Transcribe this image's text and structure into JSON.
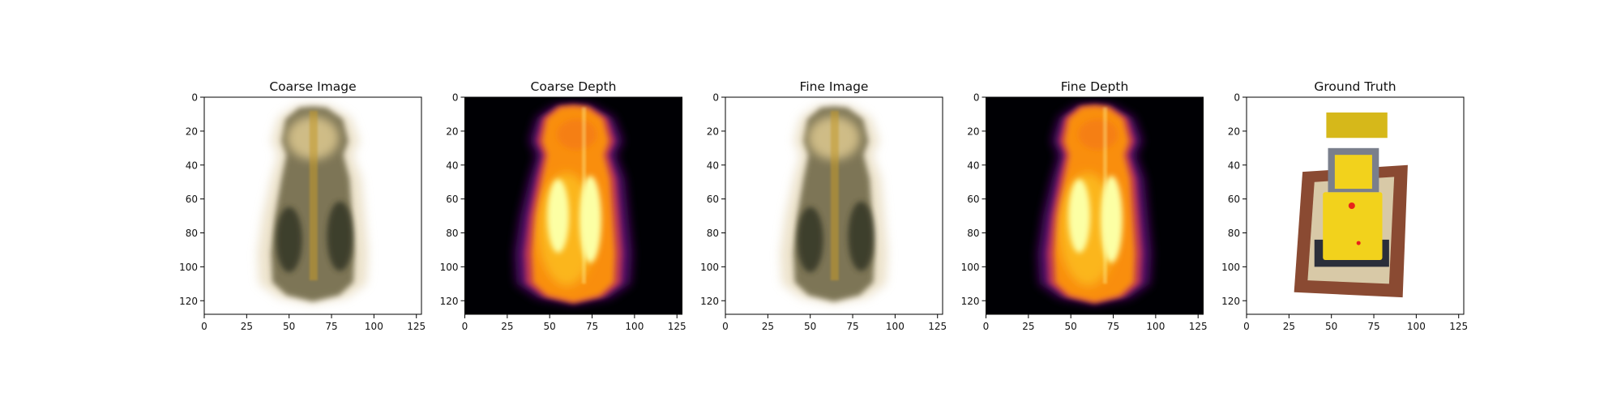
{
  "figure": {
    "panels": [
      {
        "title": "Coarse Image",
        "kind": "image-white",
        "spread": 1.0
      },
      {
        "title": "Coarse Depth",
        "kind": "depth",
        "spread": 1.0
      },
      {
        "title": "Fine Image",
        "kind": "image-white",
        "spread": 0.97
      },
      {
        "title": "Fine Depth",
        "kind": "depth",
        "spread": 0.97
      },
      {
        "title": "Ground Truth",
        "kind": "ground-truth",
        "spread": 1.0
      }
    ],
    "colors": {
      "axis": "#000000",
      "depth_background": "#000004",
      "depth_core": "#fcffa4",
      "depth_mid": "#f98e09",
      "depth_edge": "#57106e",
      "rgb_dark": "#2f3222",
      "rgb_gold": "#c49a2c",
      "gt_yellow": "#f2d21c",
      "gt_base": "#d8c9a7",
      "gt_brick": "#8a4a32"
    }
  },
  "chart_data": [
    {
      "type": "heatmap",
      "title": "Coarse Image",
      "xlim": [
        0,
        128
      ],
      "ylim": [
        128,
        0
      ],
      "xticks": [
        0,
        25,
        50,
        75,
        100,
        125
      ],
      "yticks": [
        0,
        20,
        40,
        60,
        80,
        100,
        120
      ]
    },
    {
      "type": "heatmap",
      "title": "Coarse Depth",
      "xlim": [
        0,
        128
      ],
      "ylim": [
        128,
        0
      ],
      "xticks": [
        0,
        25,
        50,
        75,
        100,
        125
      ],
      "yticks": [
        0,
        20,
        40,
        60,
        80,
        100,
        120
      ]
    },
    {
      "type": "heatmap",
      "title": "Fine Image",
      "xlim": [
        0,
        128
      ],
      "ylim": [
        128,
        0
      ],
      "xticks": [
        0,
        25,
        50,
        75,
        100,
        125
      ],
      "yticks": [
        0,
        20,
        40,
        60,
        80,
        100,
        120
      ]
    },
    {
      "type": "heatmap",
      "title": "Fine Depth",
      "xlim": [
        0,
        128
      ],
      "ylim": [
        128,
        0
      ],
      "xticks": [
        0,
        25,
        50,
        75,
        100,
        125
      ],
      "yticks": [
        0,
        20,
        40,
        60,
        80,
        100,
        120
      ]
    },
    {
      "type": "heatmap",
      "title": "Ground Truth",
      "xlim": [
        0,
        128
      ],
      "ylim": [
        128,
        0
      ],
      "xticks": [
        0,
        25,
        50,
        75,
        100,
        125
      ],
      "yticks": [
        0,
        20,
        40,
        60,
        80,
        100,
        120
      ]
    }
  ]
}
